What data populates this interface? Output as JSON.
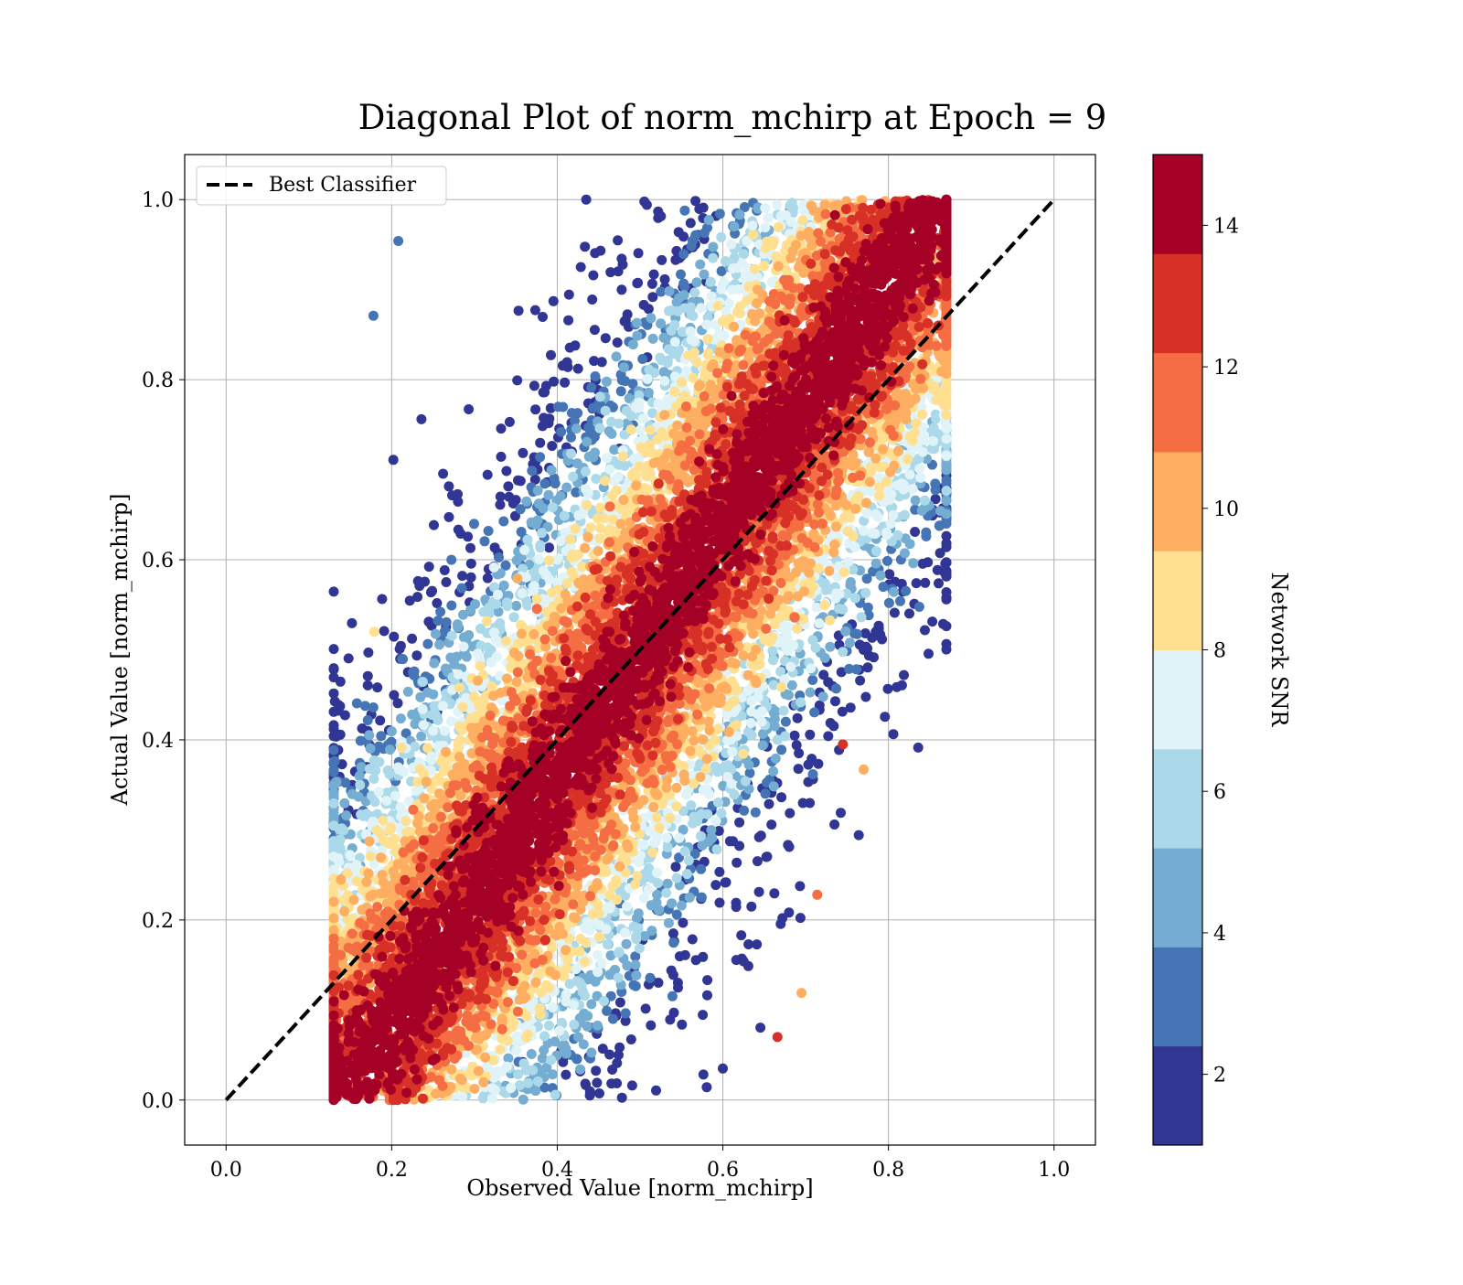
{
  "chart_data": {
    "type": "scatter",
    "title": "Diagonal Plot of norm_mchirp at Epoch = 9",
    "xlabel": "Observed Value [norm_mchirp]",
    "ylabel": "Actual Value [norm_mchirp]",
    "xlim": [
      -0.05,
      1.05
    ],
    "ylim": [
      -0.05,
      1.05
    ],
    "xticks": [
      "0.0",
      "0.2",
      "0.4",
      "0.6",
      "0.8",
      "1.0"
    ],
    "yticks": [
      "0.0",
      "0.2",
      "0.4",
      "0.6",
      "0.8",
      "1.0"
    ],
    "grid": true,
    "legend": {
      "placement": "upper-left",
      "entries": [
        {
          "label": "Best Classifier",
          "style": "dashed",
          "color": "#000000"
        }
      ]
    },
    "reference_line": {
      "name": "Best Classifier",
      "x": [
        0.0,
        1.0
      ],
      "y": [
        0.0,
        1.0
      ]
    },
    "colorbar": {
      "label": "Network SNR",
      "range": [
        1,
        15
      ],
      "ticks": [
        "2",
        "4",
        "6",
        "8",
        "10",
        "12",
        "14"
      ],
      "colors": [
        "#313695",
        "#4575b4",
        "#74add1",
        "#abd9e9",
        "#e0f3f8",
        "#fee090",
        "#fdae61",
        "#f46d43",
        "#d73027",
        "#a50026"
      ]
    },
    "point_density_approx": {
      "description": "dense scatter concentrated along diagonal; high-SNR (dark red) points within a band of about +/-0.2 around y=x, lower-SNR points (yellow to blue) spread farther from the diagonal, mostly upper-left and lower-right",
      "x_range": [
        0.13,
        0.87
      ],
      "y_range": [
        0.0,
        1.0
      ]
    },
    "notable_outliers": [
      {
        "x": 0.208,
        "y": 0.954,
        "snr": 3
      },
      {
        "x": 0.178,
        "y": 0.871,
        "snr": 3
      },
      {
        "x": 0.202,
        "y": 0.711,
        "snr": 2
      },
      {
        "x": 0.179,
        "y": 0.52,
        "snr": 9
      },
      {
        "x": 0.6,
        "y": 0.035,
        "snr": 2
      },
      {
        "x": 0.666,
        "y": 0.07,
        "snr": 13
      },
      {
        "x": 0.672,
        "y": 0.202,
        "snr": 2
      },
      {
        "x": 0.714,
        "y": 0.228,
        "snr": 12
      },
      {
        "x": 0.695,
        "y": 0.119,
        "snr": 10
      },
      {
        "x": 0.77,
        "y": 0.367,
        "snr": 10
      },
      {
        "x": 0.745,
        "y": 0.395,
        "snr": 13
      },
      {
        "x": 0.142,
        "y": 0.011,
        "snr": 14
      },
      {
        "x": 0.435,
        "y": 1.0,
        "snr": 2
      }
    ]
  }
}
